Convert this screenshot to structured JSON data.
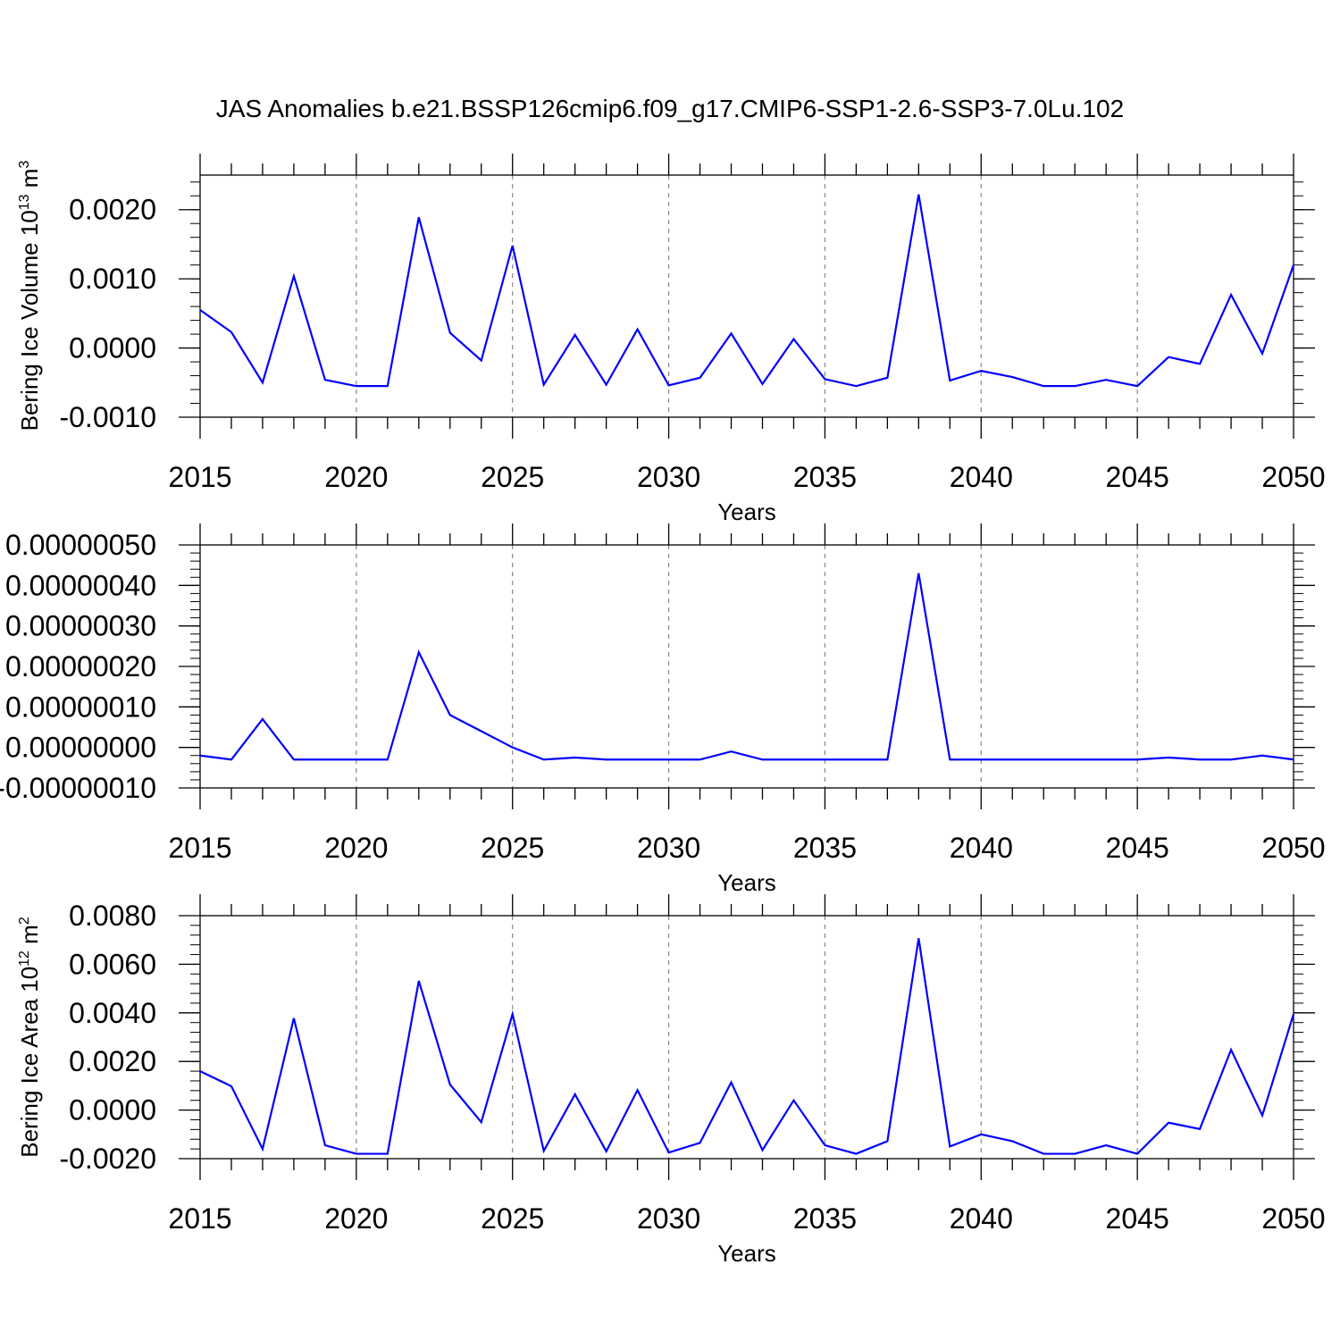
{
  "title": "JAS Anomalies b.e21.BSSP126cmip6.f09_g17.CMIP6-SSP1-2.6-SSP3-7.0Lu.102",
  "line_color": "#0000ff",
  "chart_data": [
    {
      "type": "line",
      "title": "JAS Anomalies b.e21.BSSP126cmip6.f09_g17.CMIP6-SSP1-2.6-SSP3-7.0Lu.102",
      "ylabel": {
        "text": "Bering Ice Volume 10",
        "sup": "13",
        "unit": " m",
        "unit_sup": "3"
      },
      "xlabel": "Years",
      "xlim": [
        2015,
        2050
      ],
      "x_ticks": [
        "2015",
        "2020",
        "2025",
        "2030",
        "2035",
        "2040",
        "2045",
        "2050"
      ],
      "ylim": [
        -0.001,
        0.0025
      ],
      "y_ticks": [
        -0.001,
        0.0,
        0.001,
        0.002
      ],
      "y_tick_labels": [
        "-0.0010",
        "0.0000",
        "0.0010",
        "0.0020"
      ],
      "grid": "dashed vertical at major x ticks",
      "x": [
        2015,
        2016,
        2017,
        2018,
        2019,
        2020,
        2021,
        2022,
        2023,
        2024,
        2025,
        2026,
        2027,
        2028,
        2029,
        2030,
        2031,
        2032,
        2033,
        2034,
        2035,
        2036,
        2037,
        2038,
        2039,
        2040,
        2041,
        2042,
        2043,
        2044,
        2045,
        2046,
        2047,
        2048,
        2049,
        2050
      ],
      "values": [
        0.00055,
        0.00023,
        -0.0005,
        0.00104,
        -0.00046,
        -0.00055,
        -0.00055,
        0.00189,
        0.00022,
        -0.00018,
        0.00148,
        -0.00053,
        0.00019,
        -0.00053,
        0.00027,
        -0.00054,
        -0.00043,
        0.00021,
        -0.00052,
        0.00013,
        -0.00045,
        -0.00055,
        -0.00043,
        0.00222,
        -0.00047,
        -0.00033,
        -0.00042,
        -0.00055,
        -0.00055,
        -0.00046,
        -0.00055,
        -0.00013,
        -0.00023,
        0.00077,
        -8e-05,
        0.0012
      ]
    },
    {
      "type": "line",
      "xlabel": "Years",
      "xlim": [
        2015,
        2050
      ],
      "x_ticks": [
        "2015",
        "2020",
        "2025",
        "2030",
        "2035",
        "2040",
        "2045",
        "2050"
      ],
      "ylim": [
        -1e-07,
        5e-07
      ],
      "y_ticks": [
        -1e-07,
        0,
        1e-07,
        2e-07,
        3e-07,
        4e-07,
        5e-07
      ],
      "y_tick_labels": [
        "-0.00000010",
        "0.00000000",
        "0.00000010",
        "0.00000020",
        "0.00000030",
        "0.00000040",
        "0.00000050"
      ],
      "grid": "dashed vertical at major x ticks",
      "x": [
        2015,
        2016,
        2017,
        2018,
        2019,
        2020,
        2021,
        2022,
        2023,
        2024,
        2025,
        2026,
        2027,
        2028,
        2029,
        2030,
        2031,
        2032,
        2033,
        2034,
        2035,
        2036,
        2037,
        2038,
        2039,
        2040,
        2041,
        2042,
        2043,
        2044,
        2045,
        2046,
        2047,
        2048,
        2049,
        2050
      ],
      "values": [
        -2e-08,
        -3e-08,
        7e-08,
        -3e-08,
        -3e-08,
        -3e-08,
        -3e-08,
        2.35e-07,
        8e-08,
        4e-08,
        0,
        -3e-08,
        -2.5e-08,
        -3e-08,
        -3e-08,
        -3e-08,
        -3e-08,
        -1e-08,
        -3e-08,
        -3e-08,
        -3e-08,
        -3e-08,
        -3e-08,
        4.3e-07,
        -3e-08,
        -3e-08,
        -3e-08,
        -3e-08,
        -3e-08,
        -3e-08,
        -3e-08,
        -2.5e-08,
        -3e-08,
        -3e-08,
        -2e-08,
        -3e-08
      ]
    },
    {
      "type": "line",
      "ylabel": {
        "text": "Bering Ice Area 10",
        "sup": "12",
        "unit": " m",
        "unit_sup": "2"
      },
      "xlabel": "Years",
      "xlim": [
        2015,
        2050
      ],
      "x_ticks": [
        "2015",
        "2020",
        "2025",
        "2030",
        "2035",
        "2040",
        "2045",
        "2050"
      ],
      "ylim": [
        -0.002,
        0.008
      ],
      "y_ticks": [
        -0.002,
        0.0,
        0.002,
        0.004,
        0.006,
        0.008
      ],
      "y_tick_labels": [
        "-0.0020",
        "0.0000",
        "0.0020",
        "0.0040",
        "0.0060",
        "0.0080"
      ],
      "grid": "dashed vertical at major x ticks",
      "x": [
        2015,
        2016,
        2017,
        2018,
        2019,
        2020,
        2021,
        2022,
        2023,
        2024,
        2025,
        2026,
        2027,
        2028,
        2029,
        2030,
        2031,
        2032,
        2033,
        2034,
        2035,
        2036,
        2037,
        2038,
        2039,
        2040,
        2041,
        2042,
        2043,
        2044,
        2045,
        2046,
        2047,
        2048,
        2049,
        2050
      ],
      "values": [
        0.0016,
        0.00098,
        -0.0016,
        0.00378,
        -0.00145,
        -0.0018,
        -0.0018,
        0.00532,
        0.00105,
        -0.0005,
        0.00395,
        -0.00168,
        0.00065,
        -0.0017,
        0.00082,
        -0.00175,
        -0.00135,
        0.00114,
        -0.00165,
        0.0004,
        -0.00145,
        -0.0018,
        -0.00128,
        0.00707,
        -0.0015,
        -0.001,
        -0.00128,
        -0.0018,
        -0.0018,
        -0.00145,
        -0.0018,
        -0.00052,
        -0.00078,
        0.00248,
        -0.00022,
        0.00395
      ]
    }
  ]
}
